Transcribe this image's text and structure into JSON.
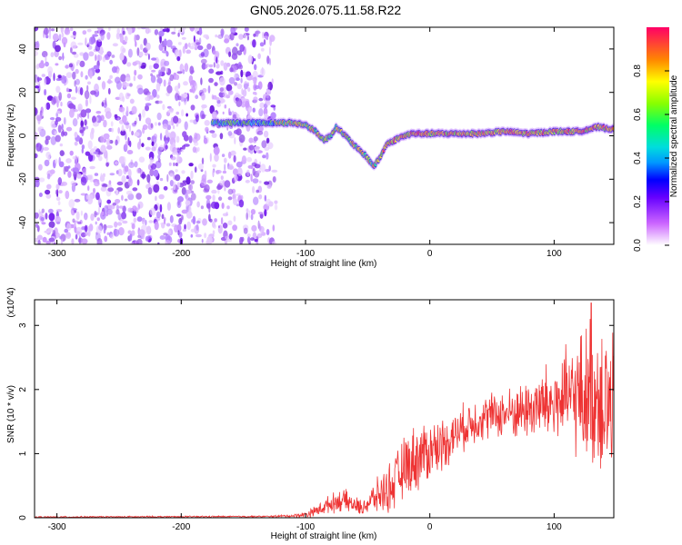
{
  "title": "GN05.2026.075.11.58.R22",
  "chart_data": [
    {
      "type": "heatmap",
      "xlabel": "Height of straight line (km)",
      "ylabel": "Frequency (Hz)",
      "xlim": [
        -318,
        148
      ],
      "ylim": [
        -50,
        50
      ],
      "xticks": [
        -300,
        -200,
        -100,
        0,
        100
      ],
      "yticks": [
        -40,
        -20,
        0,
        20,
        40
      ],
      "colorbar": {
        "label": "Normalized spectral amplitude",
        "range": [
          0,
          1
        ],
        "ticks": [
          "0.0",
          "0.2",
          "0.4",
          "0.6",
          "0.8"
        ],
        "tick_values": [
          0,
          0.2,
          0.4,
          0.6,
          0.8
        ]
      },
      "noise_region_x": [
        -318,
        -125
      ],
      "ridge": {
        "x": [
          -175,
          -150,
          -125,
          -112,
          -100,
          -92,
          -85,
          -80,
          -75,
          -68,
          -60,
          -52,
          -45,
          -40,
          -35,
          -25,
          -15,
          0,
          20,
          40,
          60,
          80,
          100,
          120,
          135,
          148
        ],
        "freq_hz": [
          6,
          6,
          6,
          6,
          5,
          2,
          -2,
          0,
          4,
          0,
          -5,
          -9,
          -14,
          -10,
          -4,
          -1,
          1,
          1,
          1,
          1,
          2,
          1,
          2,
          2,
          4,
          3
        ]
      }
    },
    {
      "type": "line",
      "xlabel": "Height of straight line (km)",
      "ylabel": "SNR (10 * v/v)",
      "y_multiplier": "(x10^4)",
      "xlim": [
        -318,
        148
      ],
      "ylim": [
        0,
        3.4
      ],
      "xticks": [
        -300,
        -200,
        -100,
        0,
        100
      ],
      "yticks": [
        0,
        1,
        2,
        3
      ],
      "line_color": "#ee3333",
      "envelope": {
        "x": [
          -318,
          -130,
          -110,
          -100,
          -90,
          -80,
          -70,
          -55,
          -45,
          -30,
          -20,
          -10,
          0,
          10,
          20,
          30,
          40,
          50,
          60,
          70,
          80,
          90,
          100,
          110,
          120,
          130,
          140,
          148
        ],
        "mean": [
          0.01,
          0.02,
          0.03,
          0.05,
          0.12,
          0.22,
          0.28,
          0.15,
          0.3,
          0.5,
          0.8,
          0.95,
          1.05,
          1.15,
          1.3,
          1.45,
          1.55,
          1.6,
          1.62,
          1.65,
          1.7,
          1.75,
          1.8,
          1.85,
          1.9,
          1.95,
          1.9,
          1.6
        ],
        "spread": [
          0.01,
          0.01,
          0.02,
          0.04,
          0.08,
          0.12,
          0.15,
          0.1,
          0.2,
          0.35,
          0.4,
          0.45,
          0.4,
          0.35,
          0.3,
          0.3,
          0.3,
          0.3,
          0.32,
          0.35,
          0.4,
          0.5,
          0.55,
          0.65,
          0.8,
          1.0,
          1.1,
          1.0
        ]
      },
      "peak": {
        "x": 130,
        "y": 3.35
      }
    }
  ]
}
